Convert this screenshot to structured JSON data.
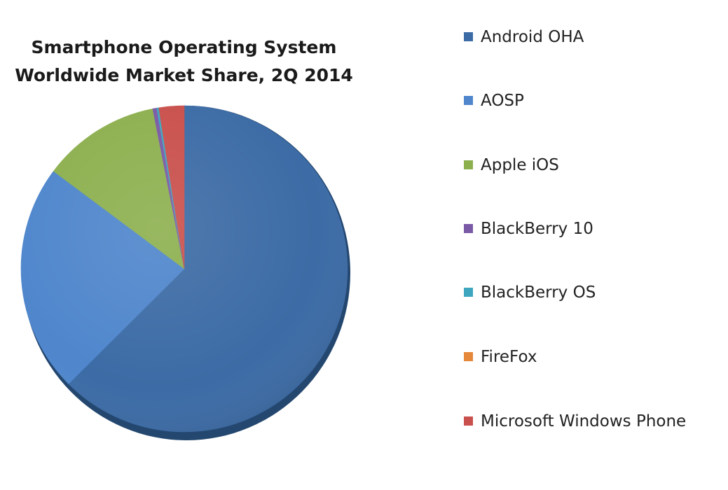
{
  "chart_data": {
    "type": "pie",
    "title_lines": [
      "Smartphone Operating System",
      "Worldwide Market Share, 2Q 2014"
    ],
    "legend_position": "right",
    "categories": [
      "Android OHA",
      "AOSP",
      "Apple iOS",
      "BlackBerry 10",
      "BlackBerry OS",
      "FireFox",
      "Microsoft Windows Phone"
    ],
    "values": [
      62.6,
      22.7,
      11.7,
      0.4,
      0.2,
      0.0,
      2.5
    ],
    "unit": "%",
    "colors": [
      "#3C6BA5",
      "#4F86CC",
      "#8DB04F",
      "#7A5AA6",
      "#3FA6BF",
      "#E5883A",
      "#C9504C"
    ]
  }
}
